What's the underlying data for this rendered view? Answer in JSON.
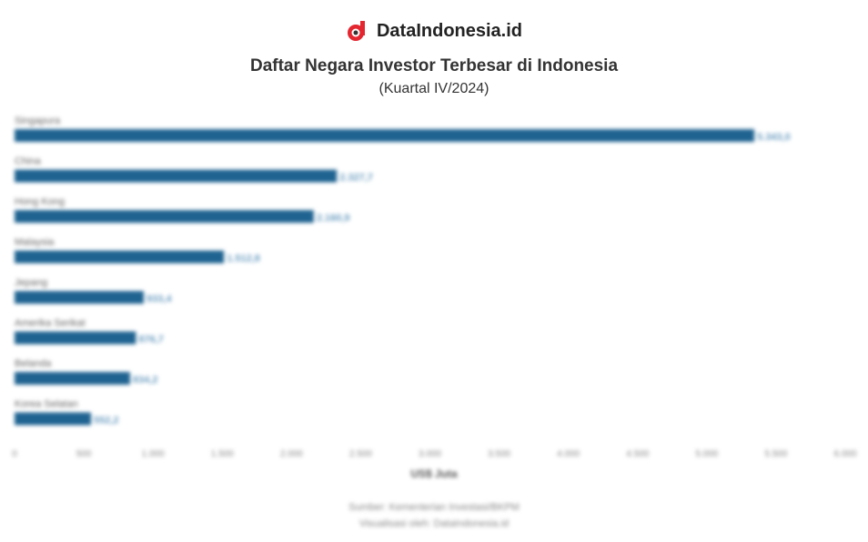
{
  "brand": {
    "name": "DataIndonesia.id",
    "color": "#e3262f"
  },
  "chart_data": {
    "type": "bar",
    "orientation": "horizontal",
    "title": "Daftar Negara Investor Terbesar di Indonesia",
    "subtitle": "(Kuartal IV/2024)",
    "categories": [
      "Singapura",
      "China",
      "Hong Kong",
      "Malaysia",
      "Jepang",
      "Amerika Serikat",
      "Belanda",
      "Korea Selatan"
    ],
    "values": [
      5343.0,
      2327.7,
      2160.9,
      1512.8,
      933.4,
      876.7,
      834.2,
      552.2
    ],
    "data_labels": [
      "5.343,0",
      "2.327,7",
      "2.160,9",
      "1.512,8",
      "933,4",
      "876,7",
      "834,2",
      "552,2"
    ],
    "xlabel": "US$ Juta",
    "xlim": [
      0,
      6000
    ],
    "xticks": [
      "0",
      "500",
      "1.000",
      "1.500",
      "2.000",
      "2.500",
      "3.000",
      "3.500",
      "4.000",
      "4.500",
      "5.000",
      "5.500",
      "6.000"
    ],
    "grid": false,
    "bar_color": "#1f6391"
  },
  "footer": {
    "source": "Sumber: Kementerian Investasi/BKPM",
    "credit": "Visualisasi oleh: DataIndonesia.id"
  }
}
